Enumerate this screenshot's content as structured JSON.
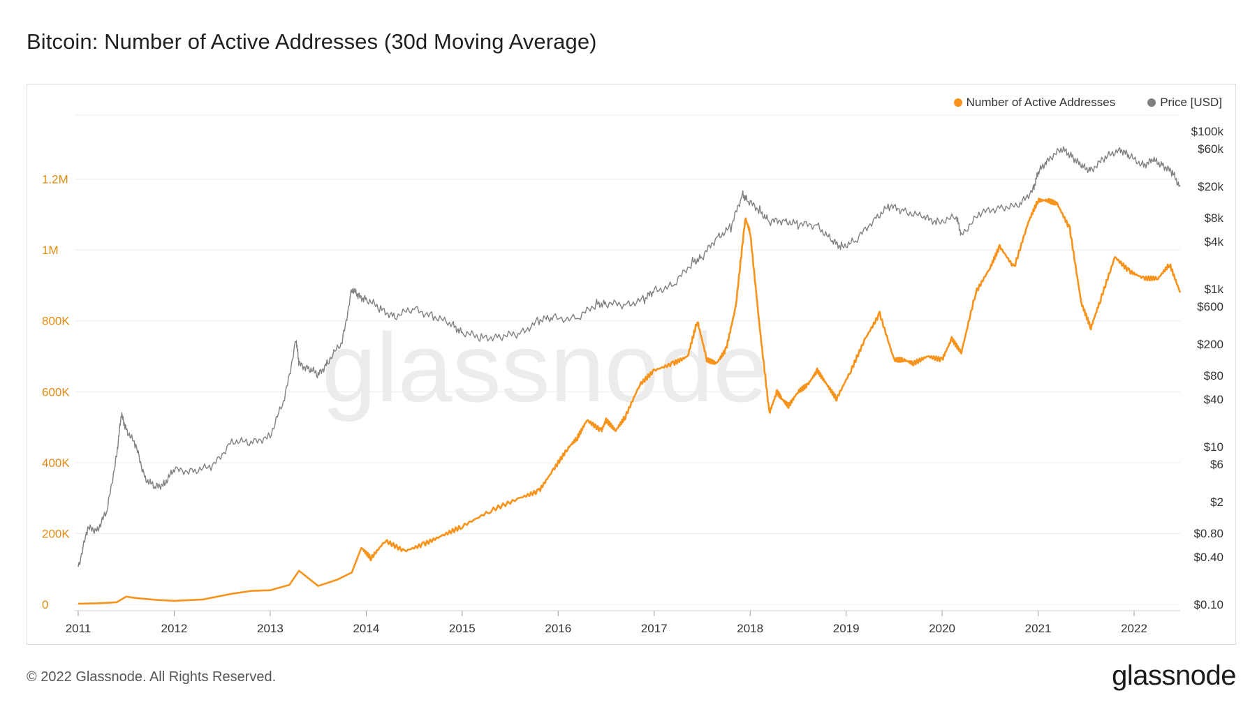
{
  "page": {
    "title": "Bitcoin: Number of Active Addresses (30d Moving Average)",
    "copyright": "© 2022 Glassnode. All Rights Reserved.",
    "brand": "glassnode",
    "watermark": "glassnode"
  },
  "legend": [
    {
      "label": "Number of Active Addresses",
      "color": "#f7931a"
    },
    {
      "label": "Price [USD]",
      "color": "#808080"
    }
  ],
  "chart_data": {
    "type": "line",
    "title": "Bitcoin: Number of Active Addresses (30d Moving Average)",
    "grid": true,
    "legend_position": "top-right",
    "x_ticks": [
      "2011",
      "2012",
      "2013",
      "2014",
      "2015",
      "2016",
      "2017",
      "2018",
      "2019",
      "2020",
      "2021",
      "2022"
    ],
    "xlim": [
      2011.0,
      2022.48
    ],
    "y_left": {
      "ticks": [
        0,
        200000,
        400000,
        600000,
        800000,
        1000000,
        1200000
      ],
      "tick_labels": [
        "0",
        "200K",
        "400K",
        "600K",
        "800K",
        "1M",
        "1.2M"
      ],
      "ylim": [
        0,
        1400000
      ],
      "color": "#e08a12"
    },
    "y_right": {
      "scale": "log",
      "ticks": [
        0.1,
        0.4,
        0.8,
        2,
        6,
        10,
        40,
        80,
        200,
        600,
        1000,
        4000,
        8000,
        20000,
        60000,
        100000
      ],
      "tick_labels": [
        "$0.10",
        "$0.40",
        "$0.80",
        "$2",
        "$6",
        "$10",
        "$40",
        "$80",
        "$200",
        "$600",
        "$1k",
        "$4k",
        "$8k",
        "$20k",
        "$60k",
        "$100k"
      ],
      "ylim": [
        0.1,
        100000
      ]
    },
    "series": [
      {
        "name": "Number of Active Addresses",
        "axis": "left",
        "color": "#f7931a",
        "x": [
          2011.0,
          2011.2,
          2011.4,
          2011.5,
          2011.6,
          2011.8,
          2012.0,
          2012.3,
          2012.6,
          2012.8,
          2013.0,
          2013.2,
          2013.3,
          2013.5,
          2013.7,
          2013.85,
          2013.95,
          2014.05,
          2014.2,
          2014.4,
          2014.6,
          2014.8,
          2015.0,
          2015.3,
          2015.6,
          2015.8,
          2015.95,
          2016.1,
          2016.2,
          2016.3,
          2016.45,
          2016.5,
          2016.6,
          2016.7,
          2016.85,
          2017.0,
          2017.2,
          2017.35,
          2017.45,
          2017.55,
          2017.65,
          2017.75,
          2017.85,
          2017.95,
          2018.0,
          2018.1,
          2018.2,
          2018.28,
          2018.33,
          2018.4,
          2018.5,
          2018.6,
          2018.7,
          2018.8,
          2018.9,
          2019.05,
          2019.2,
          2019.35,
          2019.5,
          2019.6,
          2019.7,
          2019.85,
          2020.0,
          2020.1,
          2020.2,
          2020.35,
          2020.5,
          2020.6,
          2020.75,
          2020.9,
          2021.0,
          2021.1,
          2021.2,
          2021.33,
          2021.45,
          2021.55,
          2021.65,
          2021.8,
          2021.95,
          2022.1,
          2022.25,
          2022.37,
          2022.48
        ],
        "y": [
          2000,
          3000,
          6000,
          22000,
          18000,
          13000,
          10000,
          14000,
          30000,
          38000,
          40000,
          55000,
          95000,
          52000,
          70000,
          90000,
          160000,
          130000,
          180000,
          150000,
          170000,
          195000,
          220000,
          265000,
          300000,
          320000,
          380000,
          440000,
          470000,
          520000,
          490000,
          520000,
          490000,
          530000,
          620000,
          660000,
          680000,
          700000,
          800000,
          690000,
          680000,
          720000,
          840000,
          1090000,
          1050000,
          780000,
          540000,
          600000,
          580000,
          560000,
          600000,
          620000,
          660000,
          620000,
          580000,
          660000,
          750000,
          820000,
          690000,
          690000,
          680000,
          700000,
          690000,
          750000,
          710000,
          880000,
          950000,
          1010000,
          950000,
          1080000,
          1140000,
          1140000,
          1130000,
          1060000,
          850000,
          780000,
          860000,
          980000,
          940000,
          920000,
          920000,
          960000,
          880000
        ]
      },
      {
        "name": "Price [USD]",
        "axis": "right",
        "color": "#808080",
        "x": [
          2011.0,
          2011.1,
          2011.2,
          2011.3,
          2011.4,
          2011.45,
          2011.5,
          2011.6,
          2011.7,
          2011.8,
          2011.9,
          2012.0,
          2012.2,
          2012.4,
          2012.6,
          2012.8,
          2013.0,
          2013.15,
          2013.27,
          2013.3,
          2013.4,
          2013.5,
          2013.6,
          2013.75,
          2013.85,
          2013.92,
          2014.0,
          2014.15,
          2014.3,
          2014.5,
          2014.7,
          2014.9,
          2015.0,
          2015.2,
          2015.4,
          2015.6,
          2015.8,
          2015.95,
          2016.2,
          2016.4,
          2016.5,
          2016.7,
          2016.9,
          2017.0,
          2017.2,
          2017.4,
          2017.5,
          2017.65,
          2017.8,
          2017.92,
          2017.97,
          2018.1,
          2018.2,
          2018.35,
          2018.5,
          2018.7,
          2018.85,
          2018.95,
          2019.1,
          2019.3,
          2019.45,
          2019.6,
          2019.8,
          2019.95,
          2020.15,
          2020.2,
          2020.4,
          2020.6,
          2020.8,
          2020.95,
          2021.0,
          2021.1,
          2021.25,
          2021.35,
          2021.45,
          2021.55,
          2021.7,
          2021.85,
          2021.95,
          2022.1,
          2022.2,
          2022.3,
          2022.4,
          2022.48
        ],
        "y": [
          0.3,
          0.9,
          0.9,
          1.5,
          8,
          25,
          17,
          10,
          4,
          3,
          3.5,
          5,
          5,
          5.5,
          12,
          11,
          14,
          40,
          230,
          110,
          100,
          80,
          120,
          210,
          1000,
          800,
          750,
          550,
          450,
          560,
          450,
          350,
          280,
          240,
          250,
          270,
          400,
          430,
          420,
          650,
          650,
          630,
          740,
          950,
          1100,
          2200,
          2500,
          4500,
          6000,
          16000,
          13000,
          10000,
          7000,
          7500,
          6500,
          6500,
          4000,
          3500,
          4000,
          8000,
          11000,
          10000,
          8000,
          7200,
          8000,
          5000,
          9000,
          11000,
          11000,
          19000,
          29000,
          45000,
          58000,
          50000,
          35000,
          33000,
          45000,
          61000,
          47000,
          38000,
          42000,
          38000,
          29000,
          20000
        ]
      }
    ]
  }
}
